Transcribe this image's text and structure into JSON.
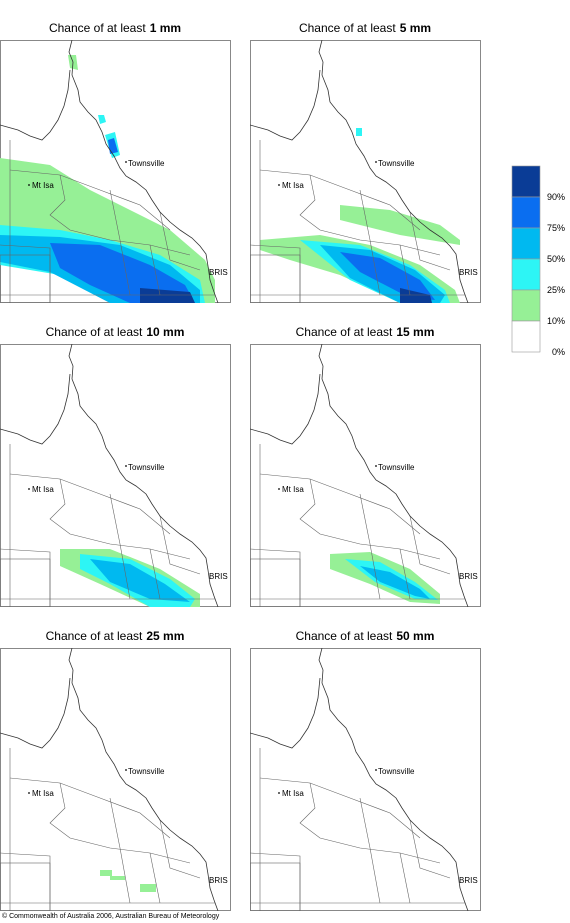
{
  "panels": [
    {
      "title": "Chance of at least",
      "amount": "1 mm"
    },
    {
      "title": "Chance of at least",
      "amount": "5 mm"
    },
    {
      "title": "Chance of at least",
      "amount": "10 mm"
    },
    {
      "title": "Chance of at least",
      "amount": "15 mm"
    },
    {
      "title": "Chance of at least",
      "amount": "25 mm"
    },
    {
      "title": "Chance of at least",
      "amount": "50 mm"
    }
  ],
  "places": {
    "townsville": "Townsville",
    "mt_isa": "Mt Isa",
    "bris": "BRIS"
  },
  "legend": {
    "colors": [
      "#0a3c96",
      "#0a6ef0",
      "#00b9f0",
      "#2df5f5",
      "#96f096",
      "#ffffff"
    ],
    "labels": [
      "90%",
      "75%",
      "50%",
      "25%",
      "10%",
      "0%"
    ]
  },
  "footer": "© Commonwealth of Australia 2006, Australian Bureau of Meteorology"
}
